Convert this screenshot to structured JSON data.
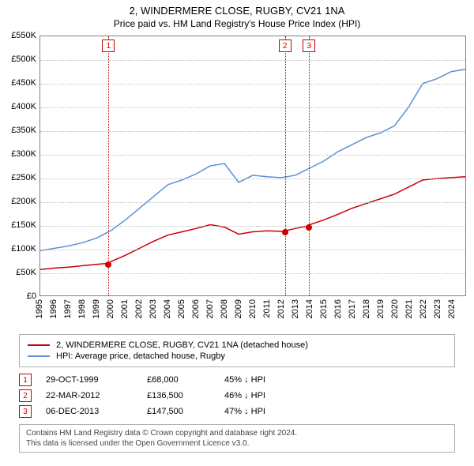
{
  "title": {
    "main": "2, WINDERMERE CLOSE, RUGBY, CV21 1NA",
    "sub": "Price paid vs. HM Land Registry's House Price Index (HPI)",
    "fontsize_main": 13,
    "fontsize_sub": 12
  },
  "chart": {
    "type": "line",
    "background_color": "#ffffff",
    "border_color": "#808080",
    "grid_color": "#c0c0c0",
    "x": {
      "min": 1995,
      "max": 2025,
      "ticks": [
        1995,
        1996,
        1997,
        1998,
        1999,
        2000,
        2001,
        2002,
        2003,
        2004,
        2005,
        2006,
        2007,
        2008,
        2009,
        2010,
        2011,
        2012,
        2013,
        2014,
        2015,
        2016,
        2017,
        2018,
        2019,
        2020,
        2021,
        2022,
        2023,
        2024
      ],
      "tick_fontsize": 11
    },
    "y": {
      "min": 0,
      "max": 550000,
      "ticks": [
        0,
        50000,
        100000,
        150000,
        200000,
        250000,
        300000,
        350000,
        400000,
        450000,
        500000,
        550000
      ],
      "tick_labels": [
        "£0",
        "£50K",
        "£100K",
        "£150K",
        "£200K",
        "£250K",
        "£300K",
        "£350K",
        "£400K",
        "£450K",
        "£500K",
        "£550K"
      ],
      "tick_fontsize": 11
    },
    "series": [
      {
        "name": "price_paid",
        "label": "2, WINDERMERE CLOSE, RUGBY, CV21 1NA (detached house)",
        "color": "#cc0000",
        "line_width": 1.5,
        "x": [
          1995,
          1996,
          1997,
          1998,
          1999,
          1999.8,
          2000,
          2001,
          2002,
          2003,
          2004,
          2005,
          2006,
          2007,
          2008,
          2009,
          2010,
          2011,
          2012,
          2012.2,
          2013,
          2013.9,
          2014,
          2015,
          2016,
          2017,
          2018,
          2019,
          2020,
          2021,
          2022,
          2023,
          2024,
          2025
        ],
        "y": [
          55000,
          58000,
          60000,
          63000,
          66000,
          68000,
          72000,
          85000,
          100000,
          115000,
          128000,
          135000,
          142000,
          150000,
          145000,
          130000,
          135000,
          137000,
          136000,
          136500,
          142000,
          147500,
          150000,
          160000,
          172000,
          185000,
          195000,
          205000,
          215000,
          230000,
          245000,
          248000,
          250000,
          252000
        ]
      },
      {
        "name": "hpi",
        "label": "HPI: Average price, detached house, Rugby",
        "color": "#5b8fd6",
        "line_width": 1.5,
        "x": [
          1995,
          1996,
          1997,
          1998,
          1999,
          2000,
          2001,
          2002,
          2003,
          2004,
          2005,
          2006,
          2007,
          2008,
          2009,
          2010,
          2011,
          2012,
          2013,
          2014,
          2015,
          2016,
          2017,
          2018,
          2019,
          2020,
          2021,
          2022,
          2023,
          2024,
          2025
        ],
        "y": [
          95000,
          100000,
          105000,
          112000,
          122000,
          138000,
          160000,
          185000,
          210000,
          235000,
          245000,
          258000,
          275000,
          280000,
          240000,
          255000,
          252000,
          250000,
          255000,
          270000,
          285000,
          305000,
          320000,
          335000,
          345000,
          360000,
          400000,
          450000,
          460000,
          475000,
          480000
        ]
      }
    ],
    "sale_points": [
      {
        "marker": "1",
        "x": 1999.8,
        "y": 68000,
        "dot_color": "#cc0000"
      },
      {
        "marker": "2",
        "x": 2012.2,
        "y": 136500,
        "dot_color": "#cc0000"
      },
      {
        "marker": "3",
        "x": 2013.9,
        "y": 147500,
        "dot_color": "#cc0000"
      }
    ],
    "marker_style": {
      "box_border_color": "#cc0000",
      "box_text_color": "#cc0000",
      "box_bg_color": "#ffffff",
      "box_size": 16,
      "vline_color": "#cc0000",
      "dot_radius": 4
    }
  },
  "legend": {
    "items": [
      {
        "color": "#cc0000",
        "label": "2, WINDERMERE CLOSE, RUGBY, CV21 1NA (detached house)"
      },
      {
        "color": "#5b8fd6",
        "label": "HPI: Average price, detached house, Rugby"
      }
    ]
  },
  "sales": [
    {
      "marker": "1",
      "date": "29-OCT-1999",
      "price": "£68,000",
      "vs_hpi": "45% ↓ HPI"
    },
    {
      "marker": "2",
      "date": "22-MAR-2012",
      "price": "£136,500",
      "vs_hpi": "46% ↓ HPI"
    },
    {
      "marker": "3",
      "date": "06-DEC-2013",
      "price": "£147,500",
      "vs_hpi": "47% ↓ HPI"
    }
  ],
  "footer": {
    "line1": "Contains HM Land Registry data © Crown copyright and database right 2024.",
    "line2": "This data is licensed under the Open Government Licence v3.0."
  }
}
